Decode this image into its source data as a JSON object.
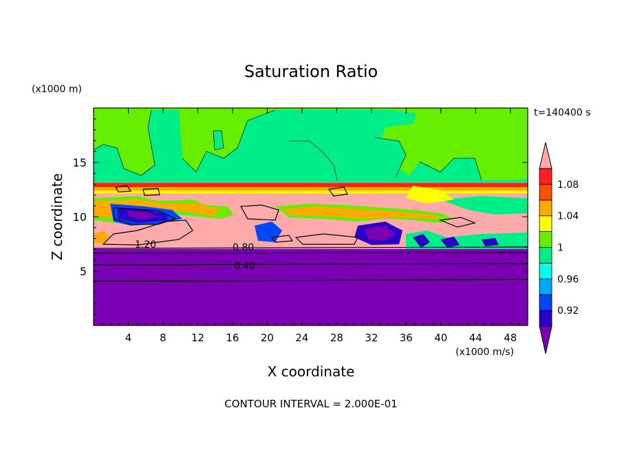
{
  "chart_data": {
    "type": "heatmap",
    "title": "Saturation Ratio",
    "xlabel": "X coordinate",
    "ylabel": "Z coordinate",
    "x_unit": "(x1000 m/s)",
    "y_unit": "(x1000 m)",
    "time_label": "t=140400 s",
    "footer": "CONTOUR INTERVAL = 2.000E-01",
    "xlim": [
      0,
      50
    ],
    "ylim": [
      0,
      20
    ],
    "x_ticks": [
      "4",
      "8",
      "12",
      "16",
      "20",
      "24",
      "28",
      "32",
      "36",
      "40",
      "44",
      "48"
    ],
    "y_ticks": [
      "5",
      "10",
      "15"
    ],
    "colorbar": {
      "levels": [
        0.9,
        0.92,
        0.94,
        0.96,
        0.98,
        1.0,
        1.02,
        1.04,
        1.06,
        1.08,
        1.1
      ],
      "tick_labels": [
        "0.92",
        "0.96",
        "1",
        "1.04",
        "1.08"
      ],
      "colors": [
        "#7b00b3",
        "#2a00c8",
        "#0048ff",
        "#00a8ff",
        "#00ffe6",
        "#00ee88",
        "#66ee00",
        "#ffff00",
        "#ffaa00",
        "#ff5000",
        "#ff2020",
        "#ffaaaa"
      ],
      "extend": "both"
    },
    "contour_labels": [
      "1.20",
      "0.80",
      "0.40"
    ],
    "layers": [
      {
        "z_range": [
          0,
          7
        ],
        "value": "<0.90",
        "color": "#7b00b3"
      },
      {
        "z_range": [
          7,
          13
        ],
        "value": "mixed 0.90-1.20",
        "color": "#ffaaaa"
      },
      {
        "z_range": [
          13,
          20
        ],
        "value": "0.98-1.02",
        "color": "#00ee88"
      }
    ]
  }
}
